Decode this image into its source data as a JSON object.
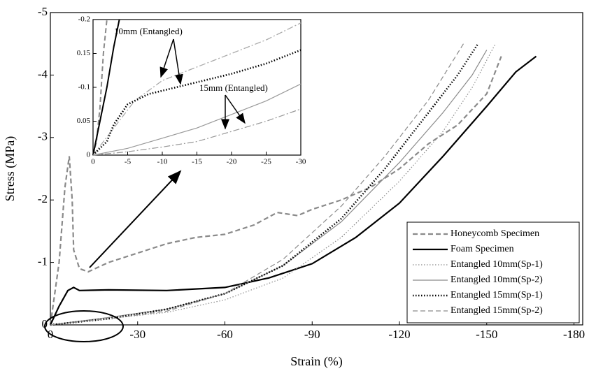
{
  "chart_data": [
    {
      "type": "line",
      "xlabel": "Strain (%)",
      "ylabel": "Stress (MPa)",
      "xlim": [
        0,
        -183
      ],
      "ylim": [
        0,
        -5
      ],
      "xticks": [
        0,
        -30,
        -60,
        -90,
        -120,
        -150,
        -180
      ],
      "yticks": [
        0,
        -1,
        -2,
        -3,
        -4,
        -5
      ],
      "legend": "lower right",
      "series": [
        {
          "name": "Honeycomb Specimen",
          "color": "#8a8a8a",
          "dash": "dashed",
          "width": 2.2,
          "x": [
            0,
            -3,
            -5,
            -6.5,
            -7.5,
            -8,
            -10,
            -13,
            -20,
            -30,
            -40,
            -50,
            -60,
            -70,
            -78,
            -85,
            -90,
            -100,
            -110,
            -120,
            -130,
            -140,
            -150,
            -155
          ],
          "values": [
            0,
            -1.0,
            -2.2,
            -2.7,
            -2.0,
            -1.2,
            -0.9,
            -0.85,
            -1.0,
            -1.15,
            -1.3,
            -1.4,
            -1.45,
            -1.6,
            -1.8,
            -1.75,
            -1.85,
            -2.0,
            -2.2,
            -2.5,
            -2.9,
            -3.2,
            -3.7,
            -4.3
          ]
        },
        {
          "name": "Foam Specimen",
          "color": "#000000",
          "dash": "solid",
          "width": 2.2,
          "x": [
            0,
            -3,
            -6,
            -8,
            -10,
            -20,
            -40,
            -60,
            -75,
            -90,
            -105,
            -120,
            -135,
            -150,
            -160,
            -167
          ],
          "values": [
            0,
            -0.3,
            -0.55,
            -0.6,
            -0.55,
            -0.56,
            -0.55,
            -0.6,
            -0.75,
            -0.98,
            -1.4,
            -1.95,
            -2.7,
            -3.5,
            -4.05,
            -4.3
          ]
        },
        {
          "name": "Entangled 10mm(Sp-1)",
          "color": "#8a8a8a",
          "dash": "dotted",
          "width": 1.2,
          "x": [
            0,
            -20,
            -40,
            -60,
            -80,
            -100,
            -120,
            -135,
            -145,
            -153
          ],
          "values": [
            0,
            -0.1,
            -0.2,
            -0.4,
            -0.75,
            -1.4,
            -2.3,
            -3.1,
            -3.8,
            -4.5
          ]
        },
        {
          "name": "Entangled 10mm(Sp-2)",
          "color": "#8a8a8a",
          "dash": "solid",
          "width": 1.2,
          "x": [
            0,
            -20,
            -40,
            -60,
            -80,
            -100,
            -120,
            -135,
            -145,
            -150
          ],
          "values": [
            0,
            -0.12,
            -0.25,
            -0.5,
            -0.95,
            -1.65,
            -2.6,
            -3.4,
            -4.0,
            -4.4
          ]
        },
        {
          "name": "Entangled 15mm(Sp-1)",
          "color": "#000000",
          "dash": "dotted",
          "width": 2.6,
          "x": [
            0,
            -20,
            -40,
            -60,
            -80,
            -100,
            -115,
            -130,
            -140,
            -147
          ],
          "values": [
            0,
            -0.1,
            -0.25,
            -0.5,
            -0.95,
            -1.7,
            -2.5,
            -3.4,
            -4.0,
            -4.5
          ]
        },
        {
          "name": "Entangled 15mm(Sp-2)",
          "color": "#8a8a8a",
          "dash": "dashed",
          "width": 1.2,
          "x": [
            0,
            -20,
            -40,
            -60,
            -80,
            -100,
            -115,
            -130,
            -142
          ],
          "values": [
            0,
            -0.1,
            -0.22,
            -0.5,
            -1.05,
            -1.9,
            -2.7,
            -3.6,
            -4.5
          ]
        }
      ]
    },
    {
      "type": "line",
      "xlim": [
        0,
        -30
      ],
      "ylim": [
        0,
        -0.2
      ],
      "xticks": [
        0,
        -5,
        -10,
        -15,
        -20,
        -25,
        -30
      ],
      "yticks": [
        0,
        {
          "value": -0.05,
          "label": "0.05"
        },
        -0.1,
        {
          "value": -0.15,
          "label": "0.15"
        },
        -0.2
      ],
      "annotations": [
        "10mm (Entangled)",
        "15mm (Entangled)"
      ],
      "series": [
        {
          "color": "#8a8a8a",
          "dash": "dashed",
          "width": 2,
          "x": [
            0,
            -0.5,
            -1,
            -1.5,
            -2
          ],
          "values": [
            0,
            -0.02,
            -0.07,
            -0.15,
            -0.2
          ]
        },
        {
          "color": "#000000",
          "dash": "solid",
          "width": 2,
          "x": [
            0,
            -1,
            -2,
            -3,
            -3.8
          ],
          "values": [
            0,
            -0.05,
            -0.1,
            -0.16,
            -0.2
          ]
        },
        {
          "color": "#aaaaaa",
          "dash": "dashdot",
          "width": 1.3,
          "x": [
            0,
            -3,
            -6,
            -10,
            -15,
            -20,
            -25,
            -30
          ],
          "values": [
            0,
            -0.04,
            -0.08,
            -0.11,
            -0.13,
            -0.15,
            -0.17,
            -0.195
          ]
        },
        {
          "color": "#000000",
          "dash": "dotted",
          "width": 2.6,
          "x": [
            0,
            -2,
            -3,
            -5,
            -8,
            -12,
            -20,
            -25,
            -30
          ],
          "values": [
            0,
            -0.02,
            -0.045,
            -0.075,
            -0.09,
            -0.1,
            -0.12,
            -0.135,
            -0.155
          ]
        },
        {
          "color": "#999999",
          "dash": "solid",
          "width": 1.2,
          "x": [
            0,
            -5,
            -10,
            -15,
            -20,
            -25,
            -30
          ],
          "values": [
            0,
            -0.01,
            -0.025,
            -0.04,
            -0.06,
            -0.08,
            -0.105
          ]
        },
        {
          "color": "#999999",
          "dash": "dashdot",
          "width": 1.2,
          "x": [
            0,
            -5,
            -10,
            -15,
            -20,
            -25,
            -30
          ],
          "values": [
            0,
            -0.005,
            -0.012,
            -0.02,
            -0.035,
            -0.05,
            -0.068
          ]
        }
      ]
    }
  ]
}
